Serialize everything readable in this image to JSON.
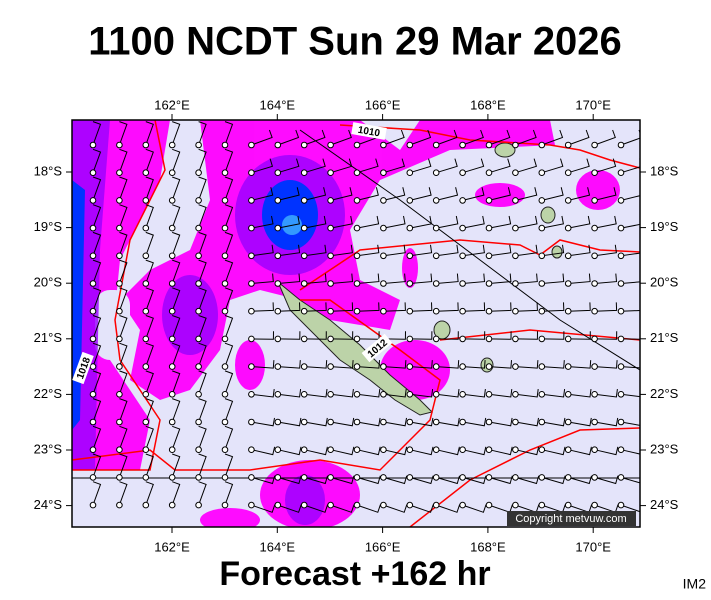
{
  "header": {
    "title": "1100 NCDT Sun 29 Mar 2026"
  },
  "map": {
    "lon_labels": [
      "162°E",
      "164°E",
      "166°E",
      "168°E",
      "170°E"
    ],
    "lat_labels": [
      "18°S",
      "19°S",
      "20°S",
      "21°S",
      "22°S",
      "23°S",
      "24°S"
    ],
    "isobar_labels": [
      "1010",
      "1012",
      "1018"
    ],
    "copyright": "Copyright metvuw.com"
  },
  "footer": {
    "forecast": "Forecast +162 hr",
    "image_id": "IM2"
  }
}
